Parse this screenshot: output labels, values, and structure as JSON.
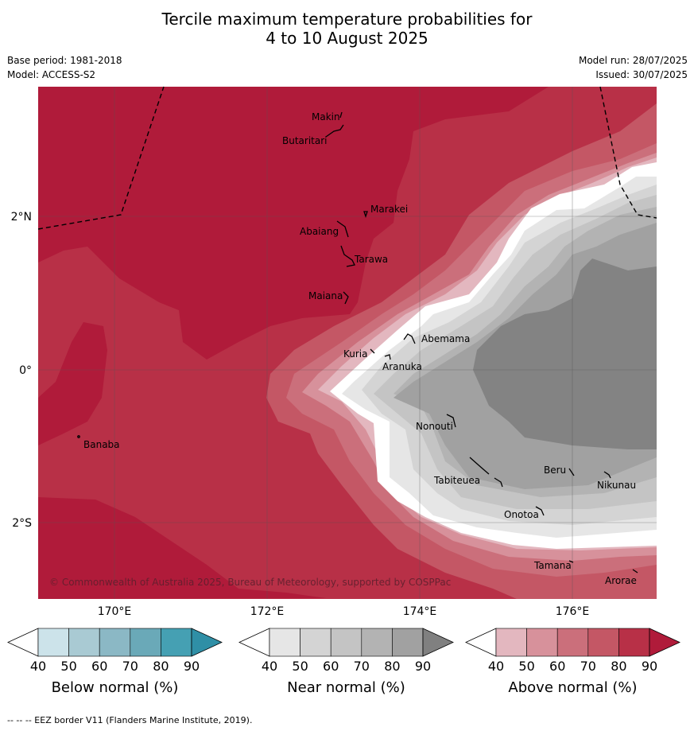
{
  "title_line1": "Tercile maximum temperature probabilities for",
  "title_line2": "4 to 10 August 2025",
  "base_period": "Base period: 1981-2018",
  "model": "Model: ACCESS-S2",
  "model_run": "Model run: 28/07/2025",
  "issued": "Issued: 30/07/2025",
  "copyright": "© Commonwealth of Australia 2025, Bureau of Meteorology, supported by COSPPac",
  "lat_labels": [
    "2°N",
    "0°",
    "2°S"
  ],
  "lon_labels": [
    "170°E",
    "172°E",
    "174°E",
    "176°E"
  ],
  "places": [
    "Makin",
    "Butaritari",
    "Marakei",
    "Abaiang",
    "Tarawa",
    "Maiana",
    "Abemama",
    "Kuria",
    "Aranuka",
    "Nonouti",
    "Banaba",
    "Tabiteuea",
    "Beru",
    "Nikunau",
    "Onotoa",
    "Tamana",
    "Arorae"
  ],
  "colorbars": [
    {
      "title": "Below normal (%)",
      "ticks": [
        "40",
        "50",
        "60",
        "70",
        "80",
        "90"
      ],
      "colors": [
        "#ffffff",
        "#cce3ea",
        "#a9cad3",
        "#8bb8c5",
        "#6aa9b8",
        "#45a0b3",
        "#2f8fa6"
      ]
    },
    {
      "title": "Near normal (%)",
      "ticks": [
        "40",
        "50",
        "60",
        "70",
        "80",
        "90"
      ],
      "colors": [
        "#ffffff",
        "#e6e6e6",
        "#d4d4d4",
        "#c4c4c4",
        "#b3b3b3",
        "#a1a1a1",
        "#808080"
      ]
    },
    {
      "title": "Above normal (%)",
      "ticks": [
        "40",
        "50",
        "60",
        "70",
        "80",
        "90"
      ],
      "colors": [
        "#ffffff",
        "#e3b7bf",
        "#d7919b",
        "#cb6f7b",
        "#c45765",
        "#b83047",
        "#b01b3a"
      ]
    }
  ],
  "footer": "--  --  -- EEZ border V11 (Flanders Marine Institute, 2019)."
}
